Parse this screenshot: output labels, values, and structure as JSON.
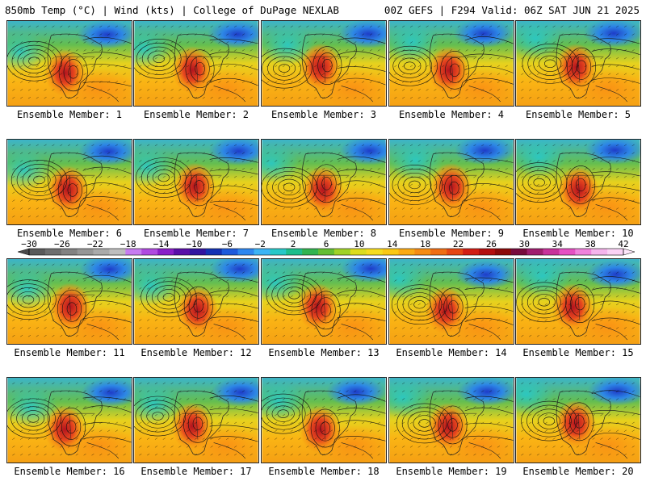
{
  "header": {
    "left": "850mb Temp (°C) | Wind (kts) | College of DuPage NEXLAB",
    "right": "00Z GEFS | F294 Valid: 06Z SAT JUN 21 2025"
  },
  "members": [
    "Ensemble Member: 1",
    "Ensemble Member: 2",
    "Ensemble Member: 3",
    "Ensemble Member: 4",
    "Ensemble Member: 5",
    "Ensemble Member: 6",
    "Ensemble Member: 7",
    "Ensemble Member: 8",
    "Ensemble Member: 9",
    "Ensemble Member: 10",
    "Ensemble Member: 11",
    "Ensemble Member: 12",
    "Ensemble Member: 13",
    "Ensemble Member: 14",
    "Ensemble Member: 15",
    "Ensemble Member: 16",
    "Ensemble Member: 17",
    "Ensemble Member: 18",
    "Ensemble Member: 19",
    "Ensemble Member: 20"
  ],
  "colorbar": {
    "tick_labels": [
      "−30",
      "−26",
      "−22",
      "−18",
      "−14",
      "−10",
      "−6",
      "−2",
      "2",
      "6",
      "10",
      "14",
      "18",
      "22",
      "26",
      "30",
      "34",
      "38",
      "42"
    ],
    "colors": [
      "#5a5a5a",
      "#6e6e6e",
      "#828282",
      "#969696",
      "#aaaaaa",
      "#bebebe",
      "#c77cf0",
      "#b04ae0",
      "#8a1ec8",
      "#5a0fa8",
      "#3214a0",
      "#1432b4",
      "#1e5adc",
      "#2d87f0",
      "#3cb4f5",
      "#28c8c8",
      "#1ebe8c",
      "#32b450",
      "#64be32",
      "#a0d228",
      "#dcdc1e",
      "#f5dc1e",
      "#fac814",
      "#faaa14",
      "#f58c14",
      "#f06e14",
      "#e64614",
      "#d21e14",
      "#b40f0f",
      "#8c0a0a",
      "#780a3c",
      "#a01e6e",
      "#c8329b",
      "#e650c3",
      "#f082dc",
      "#f5b4ec",
      "#fad2f5"
    ]
  }
}
